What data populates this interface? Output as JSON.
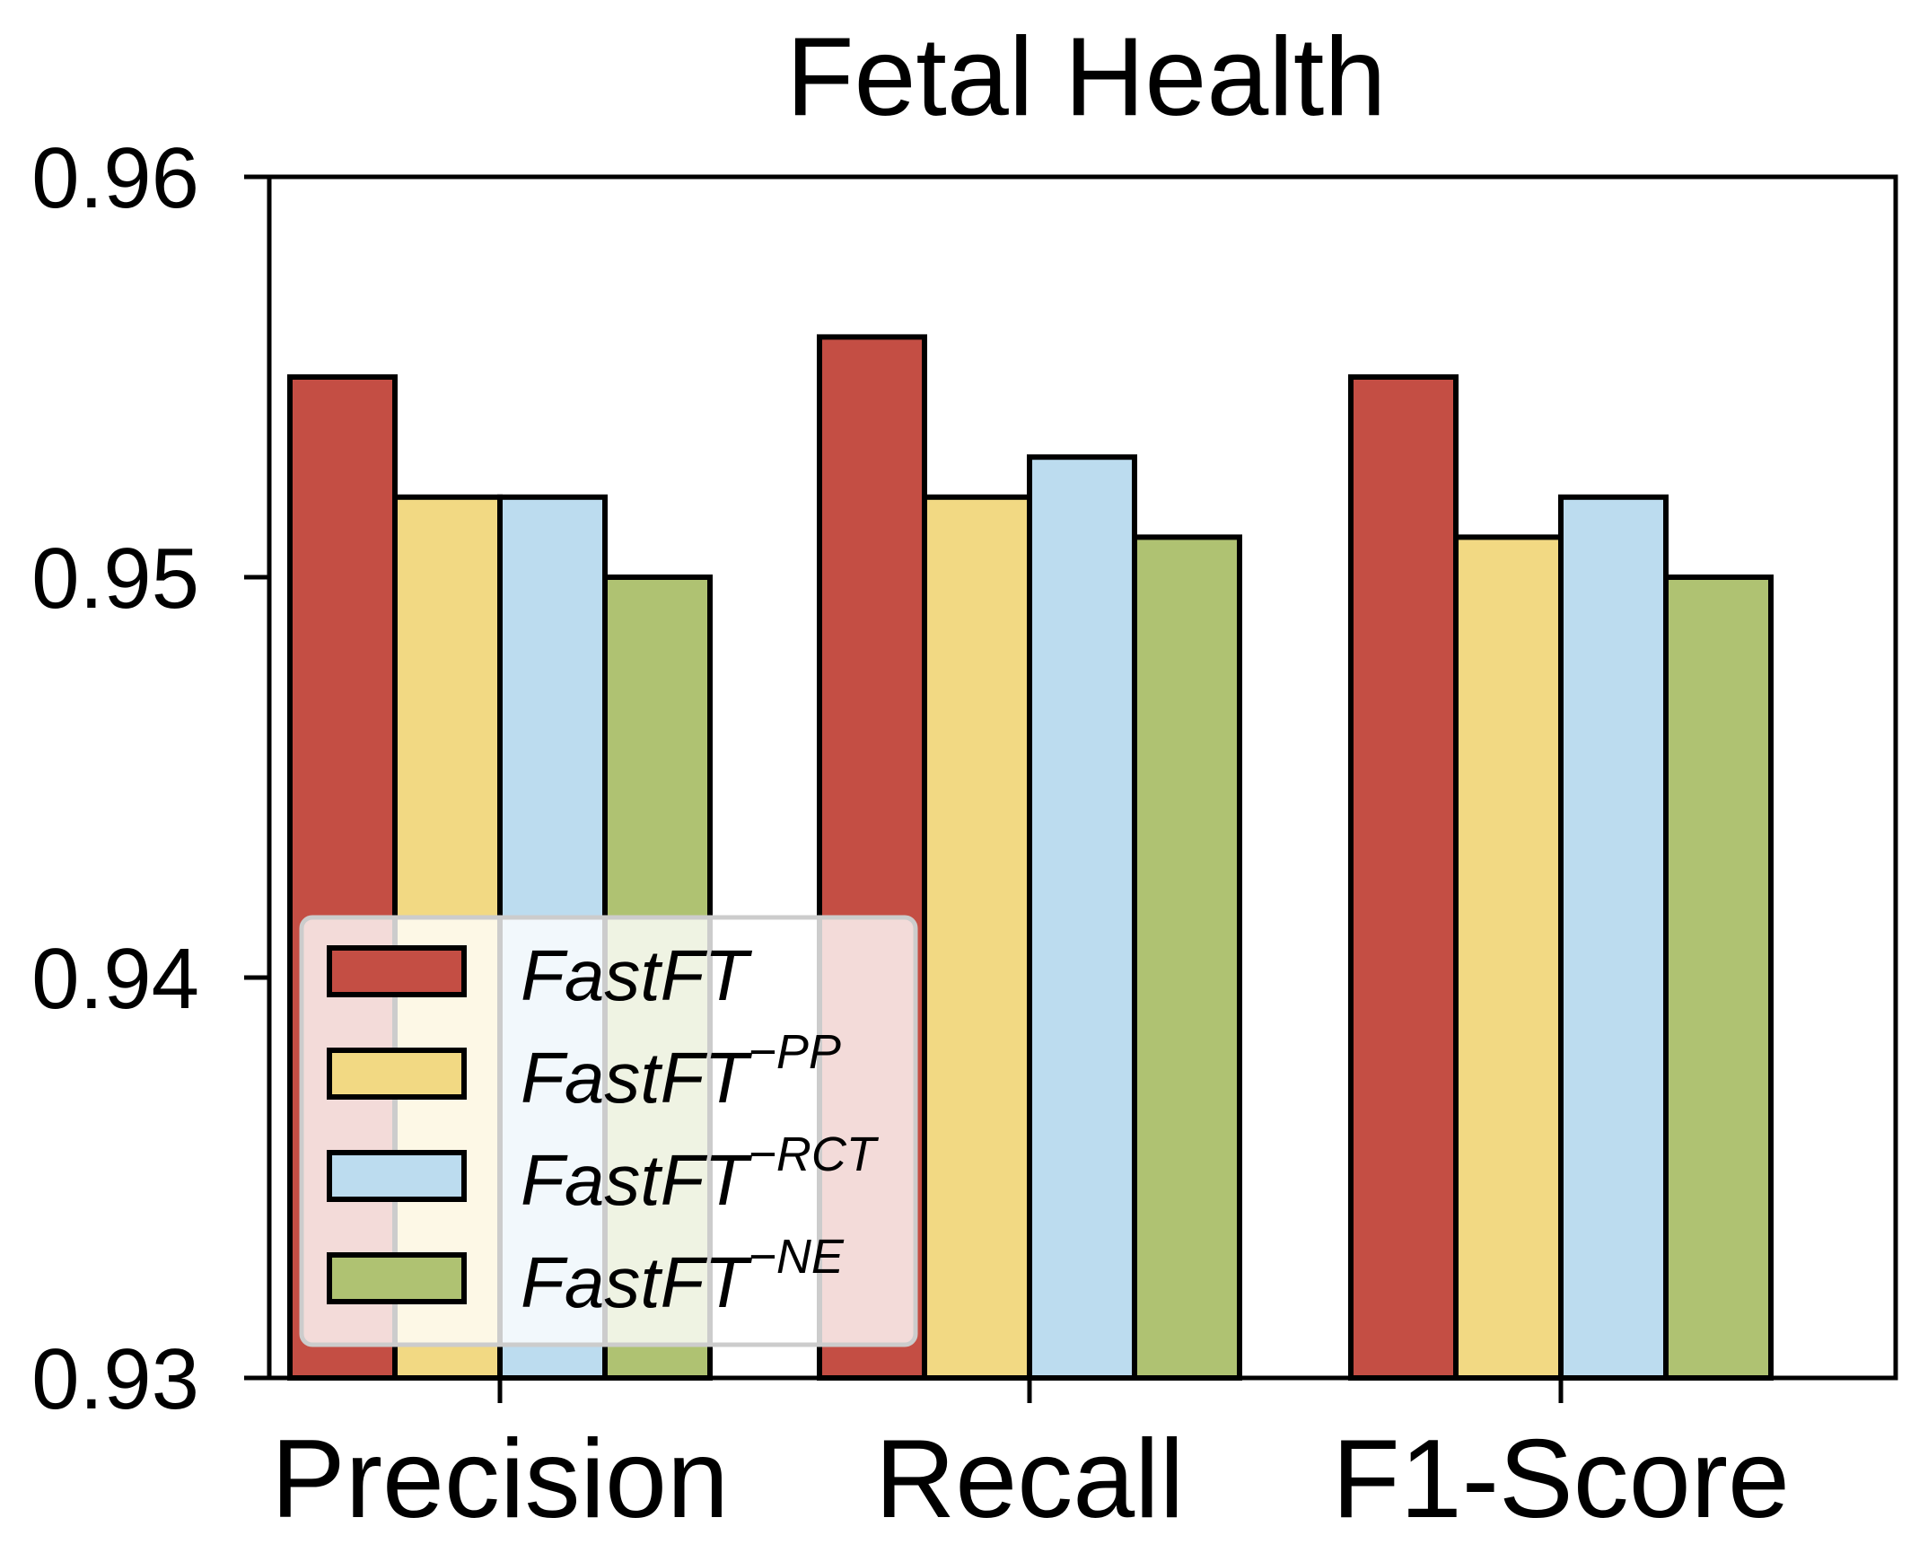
{
  "chart_data": {
    "type": "bar",
    "title": "Fetal Health",
    "xlabel": "",
    "ylabel": "",
    "categories": [
      "Precision",
      "Recall",
      "F1-Score"
    ],
    "ylim": [
      0.93,
      0.96
    ],
    "yticks": [
      0.93,
      0.94,
      0.95,
      0.96
    ],
    "ytick_labels": [
      "0.93",
      "0.94",
      "0.95",
      "0.96"
    ],
    "grid": false,
    "legend_position": "lower-left",
    "series": [
      {
        "name": "FastFT",
        "base": "FastFT",
        "sup": "",
        "color": "#c44e44",
        "values": [
          0.955,
          0.956,
          0.955
        ]
      },
      {
        "name": "FastFT^-PP",
        "base": "FastFT",
        "sup": "−PP",
        "color": "#f2d983",
        "values": [
          0.952,
          0.952,
          0.951
        ]
      },
      {
        "name": "FastFT^-RCT",
        "base": "FastFT",
        "sup": "−RCT",
        "color": "#bcdcef",
        "values": [
          0.952,
          0.953,
          0.952
        ]
      },
      {
        "name": "FastFT^-NE",
        "base": "FastFT",
        "sup": "−NE",
        "color": "#afc272",
        "values": [
          0.95,
          0.951,
          0.95
        ]
      }
    ]
  }
}
